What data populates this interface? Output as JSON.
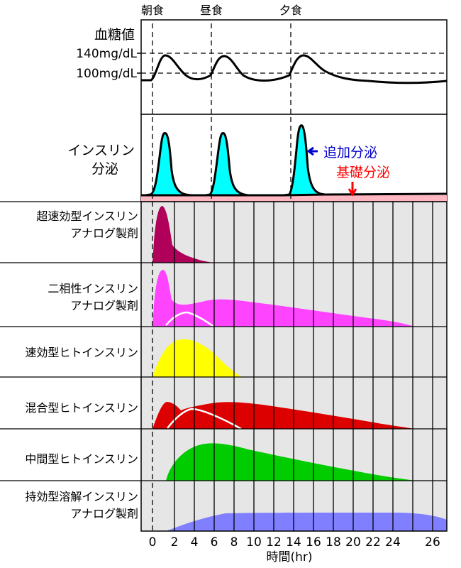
{
  "meals": [
    "朝食",
    "昼食",
    "夕食"
  ],
  "glucose_panel": {
    "title": "血糖値",
    "levels": [
      "140mg/dL",
      "100mg/dL"
    ]
  },
  "secretion_panel": {
    "title_line1": "インスリン",
    "title_line2": "分泌",
    "bolus_label": "追加分泌",
    "basal_label": "基礎分泌"
  },
  "insulin_types": [
    {
      "line1": "超速効型インスリン",
      "line2": "アナログ製剤"
    },
    {
      "line1": "二相性インスリン",
      "line2": "アナログ製剤"
    },
    {
      "line1": "速効型ヒトインスリン",
      "line2": ""
    },
    {
      "line1": "混合型ヒトインスリン",
      "line2": ""
    },
    {
      "line1": "中間型ヒトインスリン",
      "line2": ""
    },
    {
      "line1": "持効型溶解インスリン",
      "line2": "アナログ製剤"
    }
  ],
  "x_axis": {
    "ticks": [
      "0",
      "2",
      "4",
      "6",
      "8",
      "10",
      "12",
      "14",
      "16",
      "18",
      "20",
      "22",
      "24",
      "26"
    ],
    "label": "時間(hr)"
  },
  "colors": {
    "bolus": "#00ffff",
    "basal": "#ffb6c1",
    "bolus_label": "#0000cc",
    "basal_label": "#ff0000",
    "rapid_analog": "#b0005a",
    "biphasic_analog": "#ff44ff",
    "regular_human": "#ffff00",
    "premixed_human": "#dd0000",
    "nph": "#00cc00",
    "long_acting": "#7f7fff",
    "chart_bg": "#e6e6e6"
  }
}
